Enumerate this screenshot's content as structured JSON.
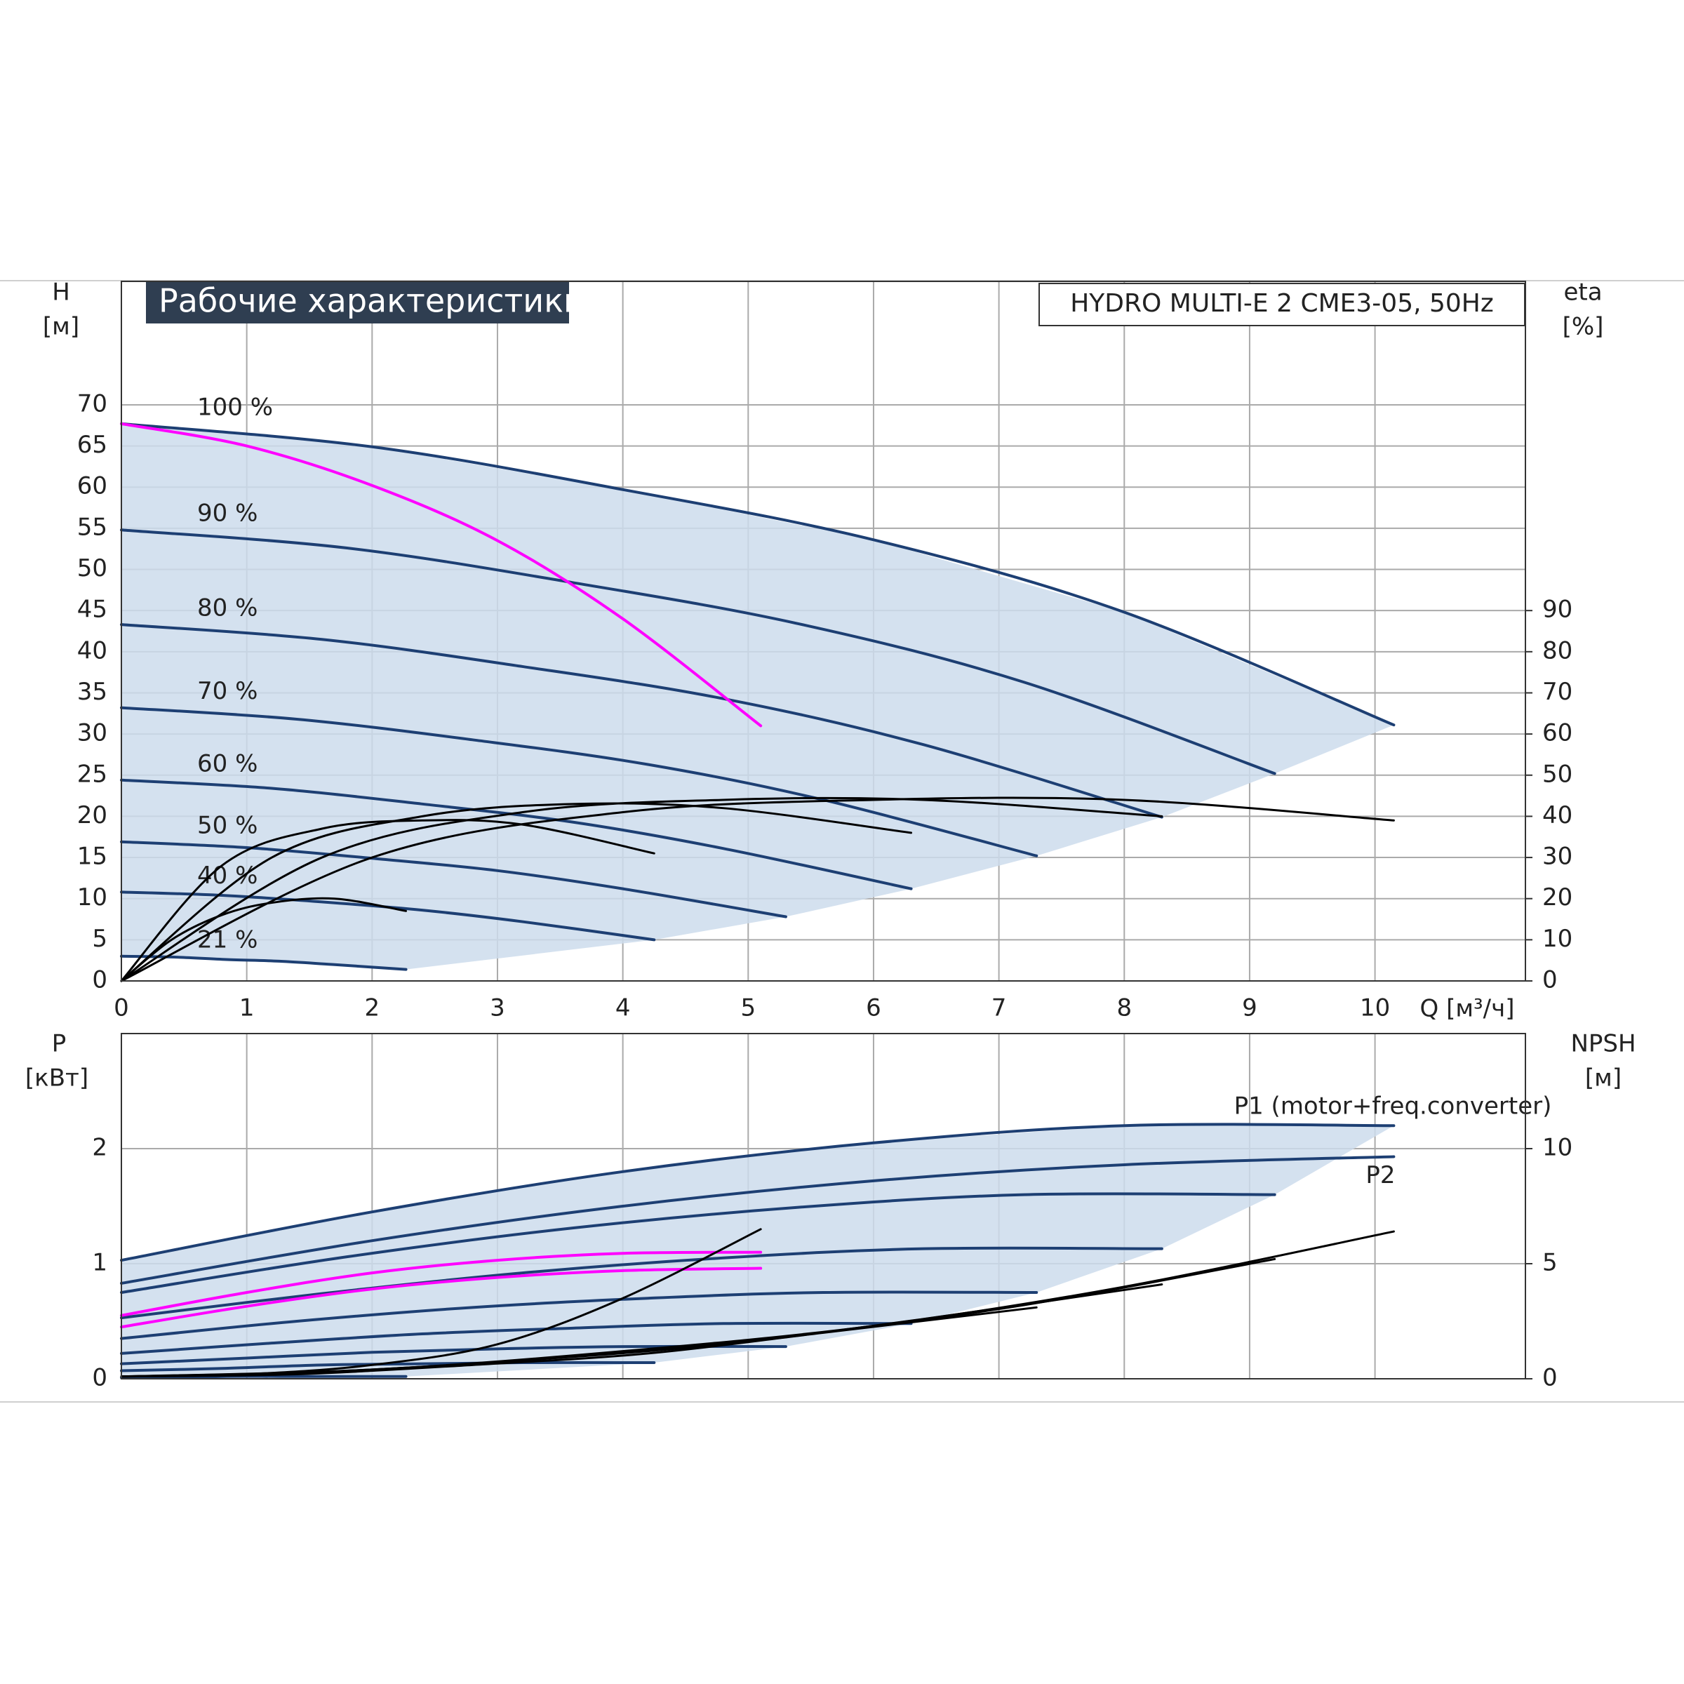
{
  "chart_data": [
    {
      "type": "line",
      "title": "Рабочие характеристики",
      "subtitle": "HYDRO MULTI-E 2 CME3-05, 50Hz",
      "ylabel": "H",
      "yunit": "[м]",
      "y2label": "eta",
      "y2unit": "[%]",
      "xlabel": "Q [м³/ч]",
      "xlim": [
        0,
        11.2
      ],
      "xticks": [
        0,
        1,
        2,
        3,
        4,
        5,
        6,
        7,
        8,
        9,
        10
      ],
      "ylim": [
        0,
        85
      ],
      "yticks": [
        0,
        5,
        10,
        15,
        20,
        25,
        30,
        35,
        40,
        45,
        50,
        55,
        60,
        65,
        70
      ],
      "y2lim": [
        0,
        170
      ],
      "y2ticks": [
        0,
        10,
        20,
        30,
        40,
        50,
        60,
        70,
        80,
        90
      ],
      "grid": true,
      "shade_color": "#cddcec",
      "series": [
        {
          "name": "100 %",
          "color": "#1d3f73",
          "shade": true,
          "label_pos": "start",
          "x": [
            0,
            2,
            4,
            6,
            8,
            10.15
          ],
          "values": [
            67.7,
            64.9,
            59.7,
            53.6,
            44.8,
            31.1
          ]
        },
        {
          "name": "90 %",
          "color": "#1d3f73",
          "shade": true,
          "label_pos": "start",
          "x": [
            0,
            1.8,
            3.6,
            5.4,
            7.2,
            9.2
          ],
          "values": [
            54.8,
            52.6,
            48.4,
            43.4,
            36.3,
            25.2
          ]
        },
        {
          "name": "80 %",
          "color": "#1d3f73",
          "shade": true,
          "label_pos": "start",
          "x": [
            0,
            1.6,
            3.2,
            4.8,
            6.4,
            8.3
          ],
          "values": [
            43.3,
            41.5,
            38.2,
            34.3,
            28.7,
            19.9
          ]
        },
        {
          "name": "70 %",
          "color": "#1d3f73",
          "shade": true,
          "label_pos": "start",
          "x": [
            0,
            1.4,
            2.8,
            4.2,
            5.6,
            7.3
          ],
          "values": [
            33.2,
            31.8,
            29.3,
            26.3,
            22,
            15.2
          ]
        },
        {
          "name": "60 %",
          "color": "#1d3f73",
          "shade": true,
          "label_pos": "start",
          "x": [
            0,
            1.2,
            2.4,
            3.6,
            4.8,
            6.3
          ],
          "values": [
            24.4,
            23.4,
            21.5,
            19.3,
            16.1,
            11.2
          ]
        },
        {
          "name": "50 %",
          "color": "#1d3f73",
          "shade": true,
          "label_pos": "start",
          "x": [
            0,
            1,
            2,
            3,
            4,
            5.3
          ],
          "values": [
            16.9,
            16.2,
            14.9,
            13.4,
            11.2,
            7.8
          ]
        },
        {
          "name": "40 %",
          "color": "#1d3f73",
          "shade": true,
          "label_pos": "start",
          "x": [
            0,
            0.8,
            1.6,
            2.4,
            3.2,
            4.25
          ],
          "values": [
            10.8,
            10.4,
            9.6,
            8.6,
            7.2,
            5
          ]
        },
        {
          "name": "21 %",
          "color": "#1d3f73",
          "shade": true,
          "label_pos": "start",
          "x": [
            0,
            0.42,
            0.84,
            1.26,
            1.68,
            2.27
          ],
          "values": [
            3,
            2.9,
            2.6,
            2.4,
            2,
            1.4
          ]
        },
        {
          "color": "#ff00ff",
          "x": [
            0,
            1,
            2,
            3,
            4,
            5.1
          ],
          "values": [
            67.7,
            65,
            60.2,
            53.5,
            44,
            31
          ]
        },
        {
          "color": "#000000",
          "axis": "y2",
          "x": [
            0,
            2,
            4,
            6,
            8,
            10.15
          ],
          "values": [
            0,
            30,
            41,
            44,
            44,
            39
          ]
        },
        {
          "color": "#000000",
          "axis": "y2",
          "x": [
            0,
            1.6,
            3.2,
            4.8,
            6.4,
            8.3
          ],
          "values": [
            0,
            30,
            41,
            44,
            44,
            40
          ]
        },
        {
          "color": "#000000",
          "axis": "y2",
          "x": [
            0,
            1.2,
            2.4,
            3.6,
            4.8,
            6.3
          ],
          "values": [
            0,
            30,
            40,
            43,
            42,
            36
          ]
        },
        {
          "color": "#000000",
          "axis": "y2",
          "x": [
            0,
            0.8,
            1.6,
            2.4,
            3.2,
            4.25
          ],
          "values": [
            0,
            28,
            37,
            39,
            38,
            31
          ]
        },
        {
          "color": "#000000",
          "axis": "y2",
          "x": [
            0,
            0.4,
            0.8,
            1.2,
            1.7,
            2.27
          ],
          "values": [
            0,
            10,
            16,
            19,
            20,
            17
          ]
        }
      ]
    },
    {
      "type": "line",
      "ylabel": "P",
      "yunit": "[кВт]",
      "y2label": "NPSH",
      "y2unit": "[м]",
      "xlim": [
        0,
        11.2
      ],
      "xticks": [
        0,
        1,
        2,
        3,
        4,
        5,
        6,
        7,
        8,
        9,
        10
      ],
      "xtick_labels": false,
      "ylim": [
        0,
        3
      ],
      "yticks": [
        0,
        1,
        2
      ],
      "y2lim": [
        0,
        15
      ],
      "y2ticks": [
        0,
        5,
        10
      ],
      "grid": true,
      "shade_color": "#cddcec",
      "series": [
        {
          "name": "P1 (motor+freq.converter)",
          "color": "#1d3f73",
          "shade": true,
          "label_pos": "end-above",
          "x": [
            0,
            2,
            4,
            6,
            8,
            10.15
          ],
          "values": [
            1.03,
            1.45,
            1.8,
            2.05,
            2.2,
            2.2
          ]
        },
        {
          "color": "#1d3f73",
          "shade": true,
          "x": [
            0,
            1.8,
            3.6,
            5.4,
            7.2,
            9.2
          ],
          "values": [
            0.75,
            1.06,
            1.31,
            1.49,
            1.6,
            1.6
          ]
        },
        {
          "color": "#1d3f73",
          "shade": true,
          "x": [
            0,
            1.6,
            3.2,
            4.8,
            6.4,
            8.3
          ],
          "values": [
            0.53,
            0.74,
            0.92,
            1.05,
            1.13,
            1.13
          ]
        },
        {
          "color": "#1d3f73",
          "shade": true,
          "x": [
            0,
            1.4,
            2.8,
            4.2,
            5.6,
            7.3
          ],
          "values": [
            0.35,
            0.5,
            0.62,
            0.7,
            0.75,
            0.75
          ]
        },
        {
          "color": "#1d3f73",
          "shade": true,
          "x": [
            0,
            1.2,
            2.4,
            3.6,
            4.8,
            6.3
          ],
          "values": [
            0.22,
            0.31,
            0.39,
            0.44,
            0.48,
            0.48
          ]
        },
        {
          "color": "#1d3f73",
          "shade": true,
          "x": [
            0,
            1,
            2,
            3,
            4,
            5.3
          ],
          "values": [
            0.13,
            0.18,
            0.23,
            0.26,
            0.28,
            0.28
          ]
        },
        {
          "color": "#1d3f73",
          "shade": true,
          "x": [
            0,
            0.8,
            1.6,
            2.4,
            3.2,
            4.25
          ],
          "values": [
            0.07,
            0.09,
            0.12,
            0.13,
            0.14,
            0.14
          ]
        },
        {
          "color": "#1d3f73",
          "shade": true,
          "x": [
            0,
            0.42,
            0.84,
            1.26,
            1.68,
            2.27
          ],
          "values": [
            0.01,
            0.01,
            0.02,
            0.02,
            0.02,
            0.02
          ]
        },
        {
          "name": "P2",
          "color": "#1d3f73",
          "label_pos": "end-below",
          "x": [
            0,
            2,
            4,
            6,
            8,
            10.15
          ],
          "values": [
            0.83,
            1.2,
            1.5,
            1.72,
            1.86,
            1.93
          ]
        },
        {
          "color": "#ff00ff",
          "x": [
            0,
            1,
            2,
            3,
            4,
            5.1
          ],
          "values": [
            0.55,
            0.75,
            0.92,
            1.03,
            1.09,
            1.1
          ]
        },
        {
          "color": "#ff00ff",
          "x": [
            0,
            1,
            2,
            3,
            4,
            5.1
          ],
          "values": [
            0.45,
            0.63,
            0.78,
            0.88,
            0.94,
            0.96
          ]
        },
        {
          "color": "#000000",
          "axis": "y2",
          "x": [
            0,
            2,
            4,
            6,
            8,
            10.15
          ],
          "values": [
            0.1,
            0.4,
            1.2,
            2.3,
            4,
            6.4
          ]
        },
        {
          "color": "#000000",
          "axis": "y2",
          "x": [
            0,
            1.8,
            3.6,
            5.4,
            7.2,
            9.2
          ],
          "values": [
            0.1,
            0.3,
            1,
            1.9,
            3.2,
            5.2
          ]
        },
        {
          "color": "#000000",
          "axis": "y2",
          "x": [
            0,
            1.6,
            3.2,
            4.8,
            6.4,
            8.3
          ],
          "values": [
            0.1,
            0.3,
            0.8,
            1.5,
            2.6,
            4.1
          ]
        },
        {
          "color": "#000000",
          "axis": "y2",
          "x": [
            0,
            1.4,
            2.8,
            4.2,
            5.6,
            7.3
          ],
          "values": [
            0.1,
            0.2,
            0.6,
            1.1,
            2,
            3.1
          ]
        },
        {
          "color": "#000000",
          "axis": "y2",
          "x": [
            0,
            1,
            2,
            3,
            4,
            5.1
          ],
          "values": [
            0.1,
            0.2,
            0.6,
            1.5,
            3.5,
            6.5
          ]
        }
      ]
    }
  ]
}
